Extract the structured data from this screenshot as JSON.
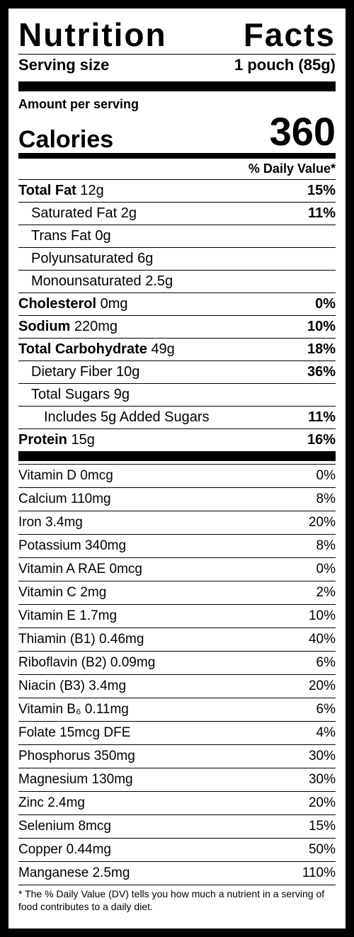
{
  "title_word1": "Nutrition",
  "title_word2": "Facts",
  "serving_label": "Serving size",
  "serving_value": "1 pouch (85g)",
  "amount_per_serving": "Amount per serving",
  "calories_label": "Calories",
  "calories_value": "360",
  "dv_header": "% Daily Value*",
  "macros": [
    {
      "name": "Total Fat",
      "amount": "12g",
      "dv": "15%",
      "bold": true,
      "indent": 0
    },
    {
      "name": "Saturated Fat",
      "amount": "2g",
      "dv": "11%",
      "bold": false,
      "indent": 1
    },
    {
      "name": "Trans Fat",
      "amount": "0g",
      "dv": "",
      "bold": false,
      "indent": 1
    },
    {
      "name": "Polyunsaturated",
      "amount": "6g",
      "dv": "",
      "bold": false,
      "indent": 1
    },
    {
      "name": "Monounsaturated",
      "amount": "2.5g",
      "dv": "",
      "bold": false,
      "indent": 1
    },
    {
      "name": "Cholesterol",
      "amount": "0mg",
      "dv": "0%",
      "bold": true,
      "indent": 0
    },
    {
      "name": "Sodium",
      "amount": "220mg",
      "dv": "10%",
      "bold": true,
      "indent": 0
    },
    {
      "name": "Total Carbohydrate",
      "amount": "49g",
      "dv": "18%",
      "bold": true,
      "indent": 0
    },
    {
      "name": "Dietary Fiber",
      "amount": "10g",
      "dv": "36%",
      "bold": false,
      "indent": 1
    },
    {
      "name": "Total Sugars",
      "amount": "9g",
      "dv": "",
      "bold": false,
      "indent": 1
    },
    {
      "name": "Includes 5g Added Sugars",
      "amount": "",
      "dv": "11%",
      "bold": false,
      "indent": 2
    },
    {
      "name": "Protein",
      "amount": "15g",
      "dv": "16%",
      "bold": true,
      "indent": 0
    }
  ],
  "vitamins": [
    {
      "name": "Vitamin D",
      "amount": "0mcg",
      "dv": "0%"
    },
    {
      "name": "Calcium",
      "amount": "110mg",
      "dv": "8%"
    },
    {
      "name": "Iron",
      "amount": "3.4mg",
      "dv": "20%"
    },
    {
      "name": "Potassium",
      "amount": "340mg",
      "dv": "8%"
    },
    {
      "name": "Vitamin A RAE",
      "amount": "0mcg",
      "dv": "0%"
    },
    {
      "name": "Vitamin C",
      "amount": "2mg",
      "dv": "2%"
    },
    {
      "name": "Vitamin E",
      "amount": "1.7mg",
      "dv": "10%"
    },
    {
      "name": "Thiamin (B1)",
      "amount": "0.46mg",
      "dv": "40%"
    },
    {
      "name": "Riboflavin (B2)",
      "amount": "0.09mg",
      "dv": "6%"
    },
    {
      "name": "Niacin (B3)",
      "amount": "3.4mg",
      "dv": "20%"
    },
    {
      "name": "Vitamin B₆",
      "amount": "0.11mg",
      "dv": "6%"
    },
    {
      "name": "Folate",
      "amount": "15mcg DFE",
      "dv": "4%"
    },
    {
      "name": "Phosphorus",
      "amount": "350mg",
      "dv": "30%"
    },
    {
      "name": "Magnesium",
      "amount": "130mg",
      "dv": "30%"
    },
    {
      "name": "Zinc",
      "amount": "2.4mg",
      "dv": "20%"
    },
    {
      "name": "Selenium",
      "amount": "8mcg",
      "dv": "15%"
    },
    {
      "name": "Copper",
      "amount": "0.44mg",
      "dv": "50%"
    },
    {
      "name": "Manganese",
      "amount": "2.5mg",
      "dv": "110%"
    }
  ],
  "footnote": "* The % Daily Value (DV) tells you how much a nutrient in a serving of food contributes to a daily diet."
}
